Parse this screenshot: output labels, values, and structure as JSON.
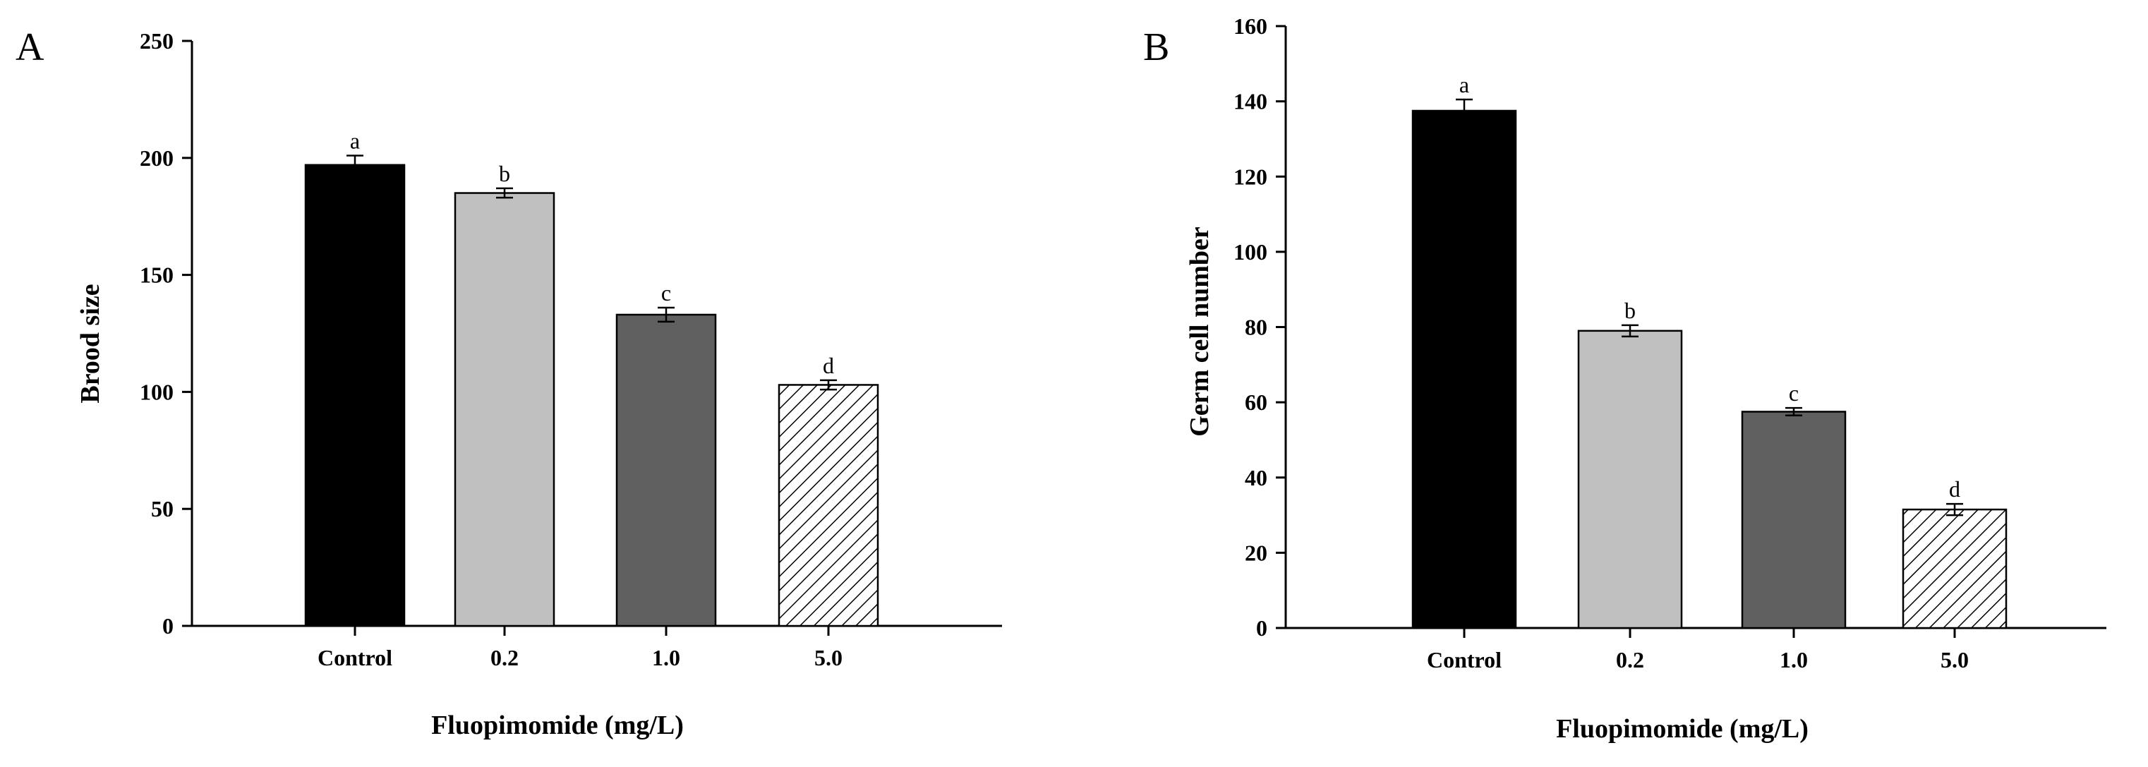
{
  "chart_data": [
    {
      "type": "bar",
      "panel": "A",
      "title": "",
      "xlabel": "Fluopimomide (mg/L)",
      "ylabel": "Brood size",
      "categories": [
        "Control",
        "0.2",
        "1.0",
        "5.0"
      ],
      "values": [
        197,
        185,
        133,
        103
      ],
      "errors": [
        4,
        2,
        3,
        2
      ],
      "significance": [
        "a",
        "b",
        "c",
        "d"
      ],
      "fills": [
        "#000000",
        "#c0c0c0",
        "#606060",
        "hatch"
      ],
      "ylim": [
        0,
        250
      ],
      "yticks": [
        "0",
        "50",
        "100",
        "150",
        "200",
        "250"
      ],
      "grid": false
    },
    {
      "type": "bar",
      "panel": "B",
      "title": "",
      "xlabel": "Fluopimomide (mg/L)",
      "ylabel": "Germ cell number",
      "categories": [
        "Control",
        "0.2",
        "1.0",
        "5.0"
      ],
      "values": [
        137.5,
        79,
        57.5,
        31.5
      ],
      "errors": [
        3,
        1.5,
        1,
        1.5
      ],
      "significance": [
        "a",
        "b",
        "c",
        "d"
      ],
      "fills": [
        "#000000",
        "#c0c0c0",
        "#606060",
        "hatch"
      ],
      "ylim": [
        0,
        160
      ],
      "yticks": [
        "0",
        "20",
        "40",
        "60",
        "80",
        "100",
        "120",
        "140",
        "160"
      ],
      "grid": false
    }
  ]
}
